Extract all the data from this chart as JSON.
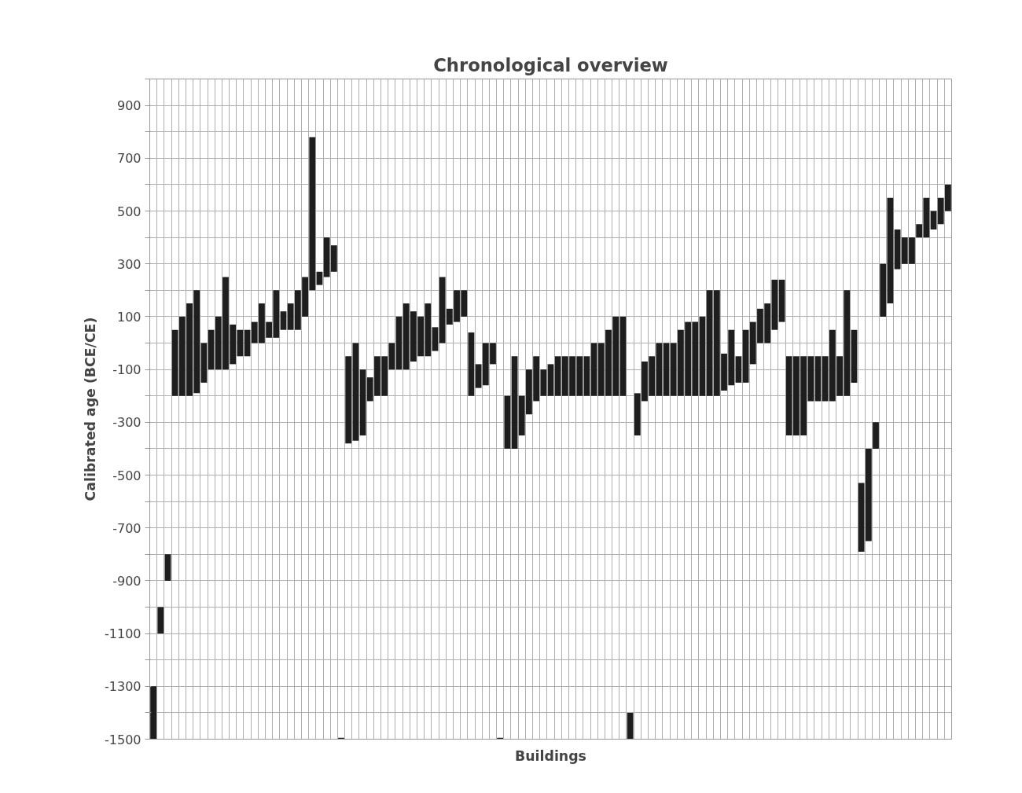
{
  "chart_data": {
    "type": "bar",
    "title": "Chronological overview",
    "xlabel": "Buildings",
    "ylabel": "Calibrated age (BCE/CE)",
    "categories": [
      null,
      null,
      null,
      null,
      null,
      null,
      null,
      null,
      null,
      null,
      null,
      null,
      null,
      null,
      null,
      null,
      null,
      null,
      null,
      null,
      null,
      null,
      null,
      null,
      null,
      null,
      null,
      null,
      null,
      null,
      null,
      null,
      null,
      null,
      null,
      null,
      null,
      null,
      null,
      null,
      null,
      null,
      null,
      null,
      null,
      null,
      null,
      null,
      null,
      null,
      null,
      null,
      null,
      null,
      null,
      null,
      null,
      null,
      null,
      null,
      null,
      null,
      null,
      null,
      null,
      null,
      null,
      null,
      null,
      null,
      null,
      null,
      null,
      null,
      null,
      null,
      null,
      null,
      null,
      null,
      null,
      null,
      null,
      null,
      null,
      null,
      null,
      null,
      null,
      null,
      null,
      null,
      null,
      null,
      null,
      null,
      null,
      null,
      null,
      null,
      null,
      null,
      null,
      null,
      null,
      null,
      null,
      null,
      null,
      null,
      null
    ],
    "base": [
      -1500,
      -1100,
      -900,
      -200,
      -200,
      -200,
      -190,
      -150,
      -100,
      -100,
      -100,
      -80,
      -50,
      -50,
      0,
      0,
      20,
      20,
      50,
      50,
      50,
      100,
      200,
      220,
      250,
      270,
      -1500,
      -380,
      -370,
      -350,
      -220,
      -200,
      -200,
      -100,
      -100,
      -100,
      -70,
      -50,
      -50,
      -30,
      0,
      70,
      80,
      100,
      -200,
      -170,
      -160,
      -80,
      -1500,
      -400,
      -400,
      -350,
      -270,
      -220,
      -200,
      -200,
      -200,
      -200,
      -200,
      -200,
      -200,
      -200,
      -200,
      -200,
      -200,
      -200,
      -1500,
      -350,
      -220,
      -200,
      -200,
      -200,
      -200,
      -200,
      -200,
      -200,
      -200,
      -200,
      -200,
      -180,
      -160,
      -150,
      -150,
      -80,
      0,
      0,
      50,
      80,
      -350,
      -350,
      -350,
      -220,
      -220,
      -220,
      -220,
      -200,
      -200,
      -150,
      -790,
      -750,
      -400,
      100,
      150,
      280,
      300,
      300,
      400,
      400,
      430,
      450,
      500
    ],
    "values": [
      200,
      100,
      100,
      250,
      300,
      350,
      390,
      150,
      150,
      200,
      350,
      150,
      100,
      100,
      80,
      150,
      60,
      180,
      70,
      100,
      150,
      150,
      580,
      50,
      150,
      100,
      5,
      330,
      370,
      250,
      90,
      150,
      150,
      100,
      200,
      250,
      190,
      150,
      200,
      90,
      250,
      60,
      120,
      100,
      240,
      90,
      160,
      80,
      5,
      200,
      350,
      150,
      170,
      170,
      100,
      120,
      150,
      150,
      150,
      150,
      150,
      200,
      200,
      250,
      300,
      300,
      100,
      160,
      150,
      150,
      200,
      200,
      200,
      250,
      280,
      280,
      300,
      400,
      400,
      140,
      210,
      100,
      200,
      160,
      130,
      150,
      190,
      160,
      300,
      300,
      300,
      170,
      170,
      170,
      270,
      150,
      400,
      200,
      260,
      350,
      100,
      200,
      400,
      150,
      100,
      100,
      50,
      150,
      70,
      100,
      100
    ],
    "color": "#1e1e1e",
    "ylim": [
      -1500,
      1000
    ],
    "yticks": [
      -1500,
      {
        "value": -1400,
        "label": null
      },
      -1300,
      {
        "value": -1200,
        "label": null
      },
      -1100,
      {
        "value": -1000,
        "label": null
      },
      -900,
      {
        "value": -800,
        "label": null
      },
      -700,
      {
        "value": -600,
        "label": null
      },
      -500,
      {
        "value": -400,
        "label": null
      },
      -300,
      {
        "value": -200,
        "label": null
      },
      -100,
      {
        "value": 0,
        "label": null
      },
      100,
      {
        "value": 200,
        "label": null
      },
      300,
      {
        "value": 400,
        "label": null
      },
      500,
      {
        "value": 600,
        "label": null
      },
      700,
      {
        "value": 800,
        "label": null
      },
      900,
      {
        "value": 1000,
        "label": null
      }
    ],
    "grid": true,
    "tick_labels": "y"
  }
}
